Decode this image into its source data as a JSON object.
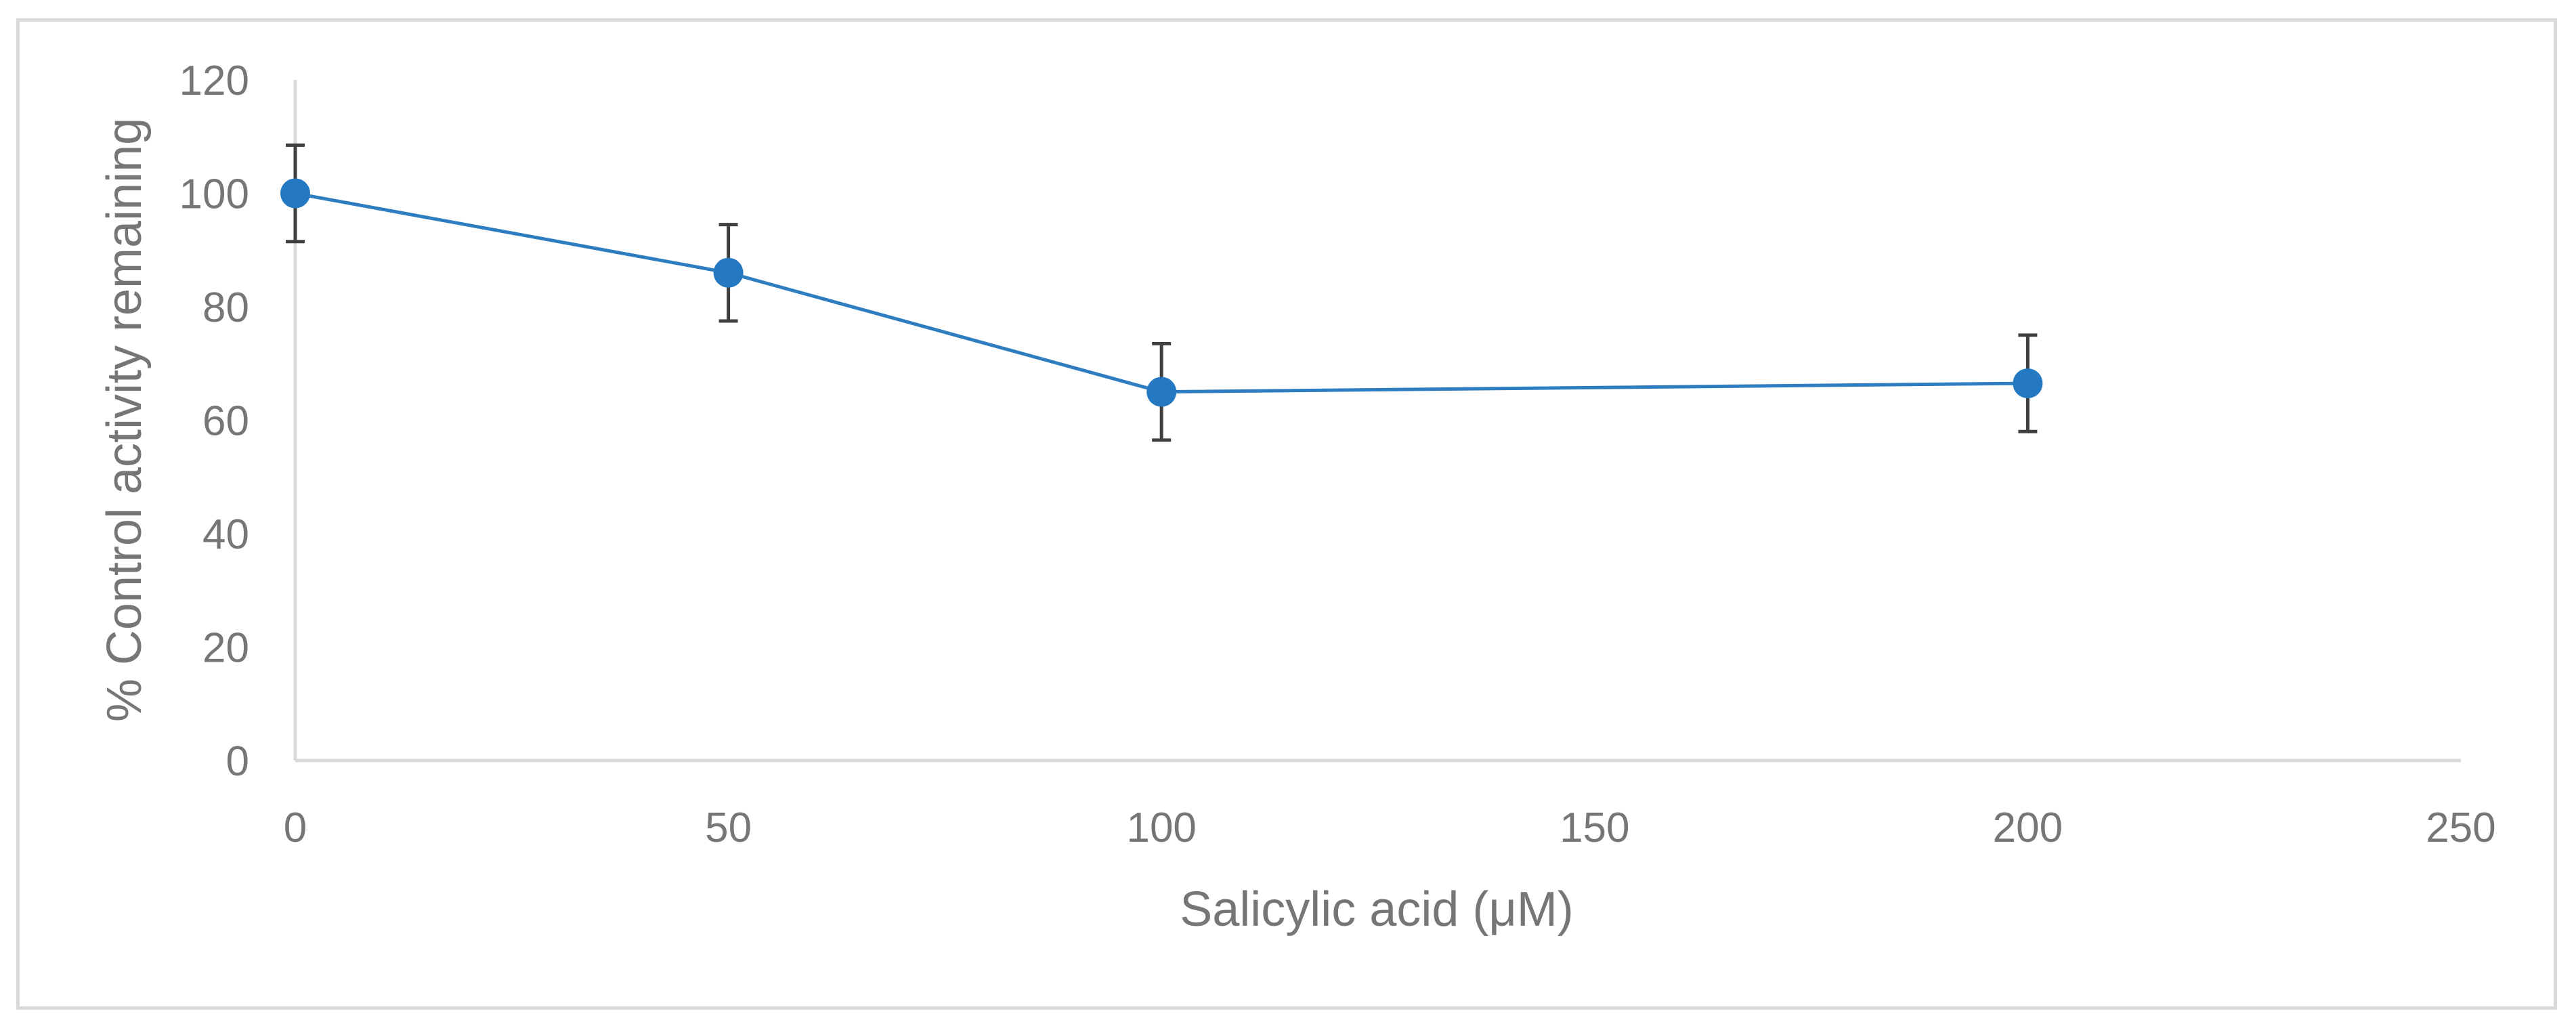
{
  "chart_data": {
    "type": "line",
    "xlabel": "Salicylic acid (μM)",
    "ylabel": "% Control activity remaining",
    "xlim": [
      0,
      250
    ],
    "ylim": [
      0,
      120
    ],
    "xticks": [
      0,
      50,
      100,
      150,
      200,
      250
    ],
    "yticks": [
      0,
      20,
      40,
      60,
      80,
      100,
      120
    ],
    "grid": false,
    "legend": "none",
    "series": [
      {
        "x": [
          0,
          50,
          100,
          200
        ],
        "y": [
          100,
          86,
          65,
          66.5
        ],
        "error": [
          8.5,
          8.5,
          8.5,
          8.5
        ],
        "color": "#2e7dc0",
        "marker": "circle"
      }
    ],
    "colors": {
      "line": "#2e7dc0",
      "marker": "#2479c2",
      "error_bar": "#404040",
      "axis": "#d9d9d9",
      "text": "#767676",
      "frame": "#d9d9d9"
    }
  }
}
